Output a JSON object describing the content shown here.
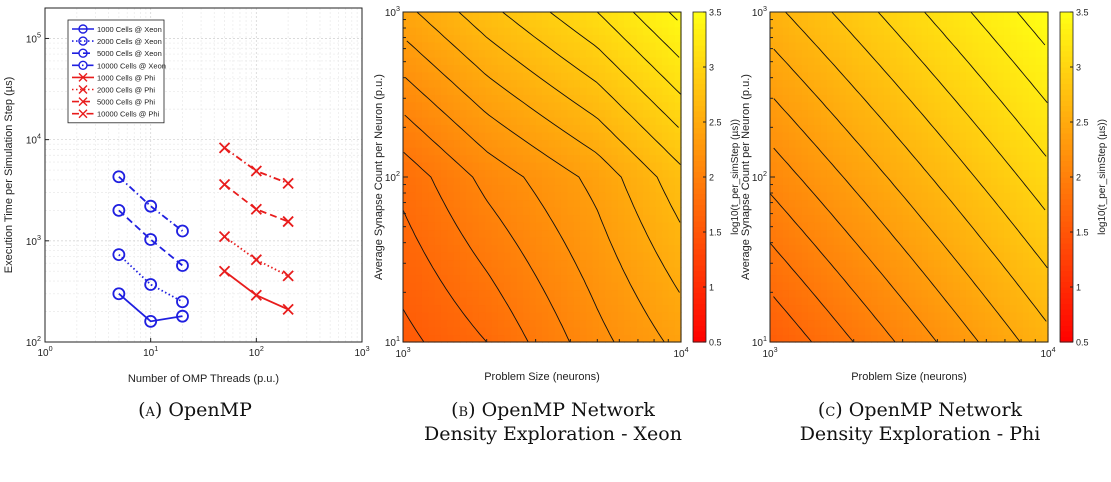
{
  "captions": [
    {
      "label": "(a)",
      "text": "OpenMP"
    },
    {
      "label": "(b)",
      "text": "OpenMP Network Density Exploration - Xeon"
    },
    {
      "label": "(c)",
      "text": "OpenMP Network Density Exploration - Phi"
    }
  ],
  "chart_data": [
    {
      "type": "line",
      "xlabel": "Number of OMP Threads (p.u.)",
      "ylabel": "Execution Time per Simulation Step (µs)",
      "xscale": "log",
      "yscale": "log",
      "xlim": [
        1,
        1000
      ],
      "ylim": [
        100,
        200000
      ],
      "xticks": [
        1,
        10,
        100,
        1000
      ],
      "yticks": [
        100,
        1000,
        10000,
        100000
      ],
      "grid": true,
      "legend_position": "top-left",
      "series": [
        {
          "name": "1000 Cells @ Xeon",
          "color": "#1f1fe0",
          "line": "solid",
          "marker": "circle",
          "x": [
            5,
            10,
            20
          ],
          "y": [
            300,
            160,
            180
          ]
        },
        {
          "name": "2000 Cells @ Xeon",
          "color": "#1f1fe0",
          "line": "dotted",
          "marker": "circle",
          "x": [
            5,
            10,
            20
          ],
          "y": [
            730,
            370,
            250
          ]
        },
        {
          "name": "5000 Cells @ Xeon",
          "color": "#1f1fe0",
          "line": "dashed",
          "marker": "circle",
          "x": [
            5,
            10,
            20
          ],
          "y": [
            2000,
            1030,
            570
          ]
        },
        {
          "name": "10000 Cells @ Xeon",
          "color": "#1f1fe0",
          "line": "dashdot",
          "marker": "circle",
          "x": [
            5,
            10,
            20
          ],
          "y": [
            4300,
            2200,
            1250
          ]
        },
        {
          "name": "1000 Cells @ Phi",
          "color": "#e81c1c",
          "line": "solid",
          "marker": "x",
          "x": [
            50,
            100,
            200
          ],
          "y": [
            500,
            290,
            210
          ]
        },
        {
          "name": "2000 Cells @ Phi",
          "color": "#e81c1c",
          "line": "dotted",
          "marker": "x",
          "x": [
            50,
            100,
            200
          ],
          "y": [
            1100,
            650,
            450
          ]
        },
        {
          "name": "5000 Cells @ Phi",
          "color": "#e81c1c",
          "line": "dashed",
          "marker": "x",
          "x": [
            50,
            100,
            200
          ],
          "y": [
            3600,
            2050,
            1550
          ]
        },
        {
          "name": "10000 Cells @ Phi",
          "color": "#e81c1c",
          "line": "dashdot",
          "marker": "x",
          "x": [
            50,
            100,
            200
          ],
          "y": [
            8300,
            4900,
            3700
          ]
        }
      ]
    },
    {
      "type": "heatmap",
      "xlabel": "Problem Size (neurons)",
      "ylabel": "Average Synapse Count per Neuron (p.u.)",
      "colorbar_label": "log10(t_per_simStep (µs))",
      "xscale": "log",
      "yscale": "log",
      "xlim": [
        1000,
        10000
      ],
      "ylim": [
        10,
        1000
      ],
      "clim": [
        0.5,
        3.5
      ],
      "colorbar_ticks": [
        0.5,
        1,
        1.5,
        2,
        2.5,
        3,
        3.5
      ],
      "grid_x": [
        1000,
        2000,
        5000,
        10000
      ],
      "grid_y": [
        10,
        100,
        1000
      ],
      "z": [
        [
          1.55,
          1.75,
          2.15,
          2.4
        ],
        [
          1.8,
          2.1,
          2.4,
          2.75
        ],
        [
          2.45,
          2.75,
          3.1,
          3.45
        ]
      ]
    },
    {
      "type": "heatmap",
      "xlabel": "Problem Size (neurons)",
      "ylabel": "Average Synapse Count per Neuron (p.u.)",
      "colorbar_label": "log10(t_per_simStep (µs))",
      "xscale": "log",
      "yscale": "log",
      "xlim": [
        1000,
        10000
      ],
      "ylim": [
        10,
        1000
      ],
      "clim": [
        0.5,
        3.5
      ],
      "colorbar_ticks": [
        0.5,
        1,
        1.5,
        2,
        2.5,
        3,
        3.5
      ],
      "grid_x": [
        1000,
        10000
      ],
      "grid_y": [
        10,
        1000
      ],
      "z": [
        [
          1.6,
          2.6
        ],
        [
          2.6,
          3.5
        ]
      ]
    }
  ]
}
